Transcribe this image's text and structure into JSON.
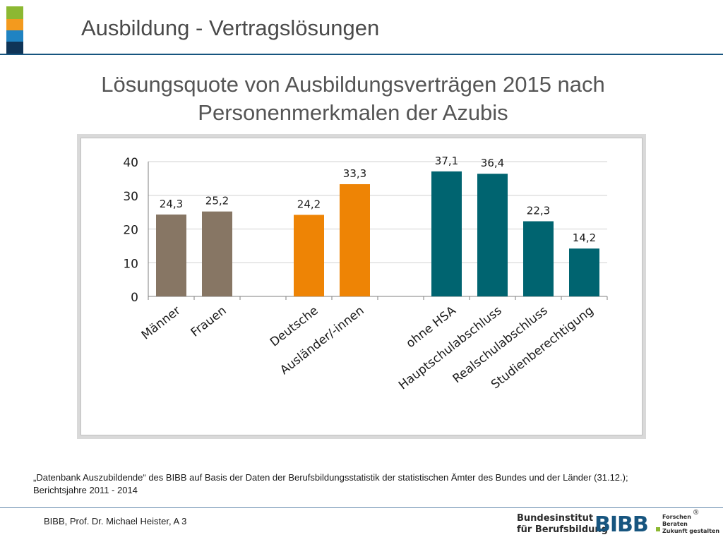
{
  "header": {
    "title": "Ausbildung - Vertragslösungen"
  },
  "subtitle_lines": [
    "Lösungsquote von Ausbildungsverträgen 2015 nach",
    "Personenmerkmalen der Azubis"
  ],
  "colors": {
    "gender": "#877664",
    "nationality": "#ee8405",
    "education": "#006470",
    "header_rule": "#17557f"
  },
  "chart_data": {
    "type": "bar",
    "title": "",
    "xlabel": "",
    "ylabel": "",
    "ylim": [
      0,
      40
    ],
    "yticks": [
      "0",
      "10",
      "20",
      "30",
      "40"
    ],
    "grid": true,
    "legend": "none",
    "categories": [
      "Männer",
      "Frauen",
      "Deutsche",
      "Ausländer/-innen",
      "ohne HSA",
      "Hauptschulabschluss",
      "Realschulabschluss",
      "Studienberechtigung"
    ],
    "values": [
      24.3,
      25.2,
      24.2,
      33.3,
      37.1,
      36.4,
      22.3,
      14.2
    ],
    "value_labels": [
      "24,3",
      "25,2",
      "24,2",
      "33,3",
      "37,1",
      "36,4",
      "22,3",
      "14,2"
    ],
    "groups": [
      "gender",
      "gender",
      "nationality",
      "nationality",
      "education",
      "education",
      "education",
      "education"
    ]
  },
  "source_note": "„Datenbank Auszubildende“ des BIBB auf Basis der Daten der Berufsbildungsstatistik der statistischen Ämter des Bundes und der Länder (31.12.); Berichtsjahre 2011 - 2014",
  "footer": {
    "author": "BIBB, Prof. Dr. Michael Heister, A 3",
    "logo_name_line1": "Bundesinstitut",
    "logo_name_line2": "für Berufsbildung",
    "logo_mark": "BIBB",
    "slogan_line1": "Forschen",
    "slogan_line2": "Beraten",
    "slogan_line3": "Zukunft gestalten",
    "registered": "®"
  }
}
